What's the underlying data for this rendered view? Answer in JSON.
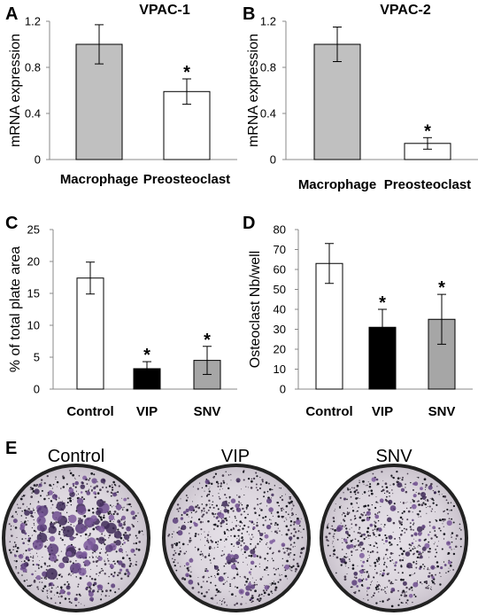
{
  "figure": {
    "panel_letters": [
      "A",
      "B",
      "C",
      "D",
      "E"
    ],
    "panel_e": {
      "labels": [
        "Control",
        "VIP",
        "SNV"
      ]
    }
  },
  "chart_data": [
    {
      "panel": "A",
      "type": "bar",
      "title": "VPAC-1",
      "xlabel": "",
      "ylabel": "mRNA expression",
      "ylim": [
        0,
        1.2
      ],
      "yticks": [
        "0",
        "0.4",
        "0.8",
        "1.2"
      ],
      "categories": [
        "Macrophage",
        "Preosteoclast"
      ],
      "values": [
        1.0,
        0.59
      ],
      "errors": [
        0.17,
        0.11
      ],
      "significance": [
        "",
        "*"
      ],
      "colors": [
        "#c0c0c0",
        "#ffffff"
      ],
      "grid": false
    },
    {
      "panel": "B",
      "type": "bar",
      "title": "VPAC-2",
      "xlabel": "",
      "ylabel": "mRNA expression",
      "ylim": [
        0,
        1.2
      ],
      "yticks": [
        "0",
        "0.4",
        "0.8",
        "1.2"
      ],
      "categories": [
        "Macrophage",
        "Preosteoclast"
      ],
      "values": [
        1.0,
        0.14
      ],
      "errors": [
        0.15,
        0.05
      ],
      "significance": [
        "",
        "*"
      ],
      "colors": [
        "#c0c0c0",
        "#ffffff"
      ],
      "grid": false
    },
    {
      "panel": "C",
      "type": "bar",
      "title": "",
      "xlabel": "",
      "ylabel": "% of total plate area",
      "ylim": [
        0,
        25
      ],
      "yticks": [
        "0",
        "5",
        "10",
        "15",
        "20",
        "25"
      ],
      "categories": [
        "Control",
        "VIP",
        "SNV"
      ],
      "values": [
        17.4,
        3.2,
        4.5
      ],
      "errors": [
        2.5,
        1.1,
        2.2
      ],
      "significance": [
        "",
        "*",
        "*"
      ],
      "colors": [
        "#ffffff",
        "#000000",
        "#a6a6a6"
      ],
      "grid": false
    },
    {
      "panel": "D",
      "type": "bar",
      "title": "",
      "xlabel": "",
      "ylabel": "Osteoclast Nb/well",
      "ylim": [
        0,
        80
      ],
      "yticks": [
        "0",
        "10",
        "20",
        "30",
        "40",
        "50",
        "60",
        "70",
        "80"
      ],
      "categories": [
        "Control",
        "VIP",
        "SNV"
      ],
      "values": [
        63,
        31,
        35
      ],
      "errors": [
        10,
        9,
        12.5
      ],
      "significance": [
        "",
        "*",
        "*"
      ],
      "colors": [
        "#ffffff",
        "#000000",
        "#a6a6a6"
      ],
      "grid": false
    }
  ]
}
